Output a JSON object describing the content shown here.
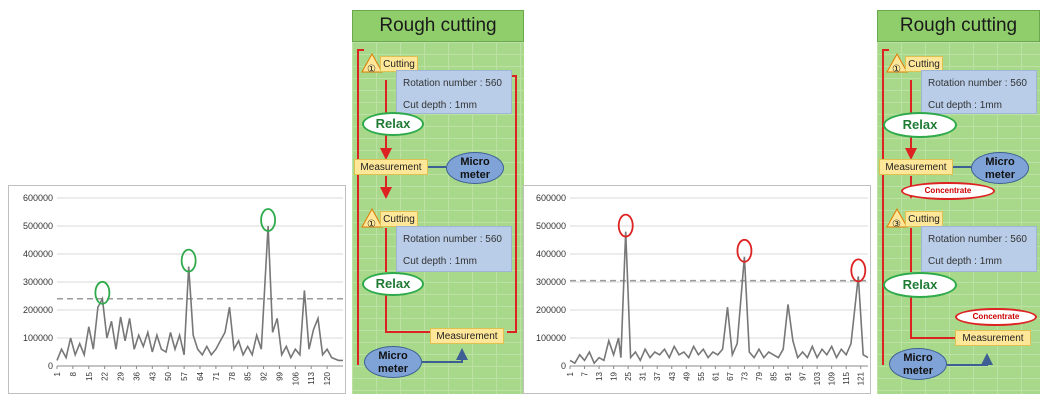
{
  "chart_data": [
    {
      "type": "line",
      "title": "",
      "xlabel": "",
      "ylabel": "",
      "ylim": [
        0,
        600000
      ],
      "yticks": [
        0,
        100000,
        200000,
        300000,
        400000,
        500000,
        600000
      ],
      "ytick_labels": [
        "0",
        "100000",
        "200000",
        "300000",
        "400000",
        "500000",
        "600000"
      ],
      "xlim": [
        1,
        127
      ],
      "xticks": [
        1,
        8,
        15,
        22,
        29,
        36,
        43,
        50,
        57,
        64,
        71,
        78,
        85,
        92,
        99,
        106,
        113,
        120
      ],
      "xtick_labels": [
        "1",
        "8",
        "15",
        "22",
        "29",
        "36",
        "43",
        "50",
        "57",
        "64",
        "71",
        "78",
        "85",
        "92",
        "99",
        "106",
        "113",
        "120"
      ],
      "threshold": 240000,
      "highlight_x": [
        21,
        59,
        94
      ],
      "highlight_color": "#2eaa4a",
      "grid": true,
      "series": [
        {
          "color": "#777777",
          "points": [
            [
              1,
              20000
            ],
            [
              3,
              60000
            ],
            [
              5,
              30000
            ],
            [
              7,
              100000
            ],
            [
              9,
              40000
            ],
            [
              11,
              80000
            ],
            [
              13,
              40000
            ],
            [
              15,
              140000
            ],
            [
              17,
              60000
            ],
            [
              19,
              210000
            ],
            [
              21,
              240000
            ],
            [
              23,
              100000
            ],
            [
              25,
              160000
            ],
            [
              27,
              60000
            ],
            [
              29,
              175000
            ],
            [
              31,
              90000
            ],
            [
              33,
              170000
            ],
            [
              35,
              60000
            ],
            [
              37,
              110000
            ],
            [
              39,
              70000
            ],
            [
              41,
              120000
            ],
            [
              43,
              50000
            ],
            [
              45,
              110000
            ],
            [
              47,
              60000
            ],
            [
              49,
              50000
            ],
            [
              51,
              120000
            ],
            [
              53,
              60000
            ],
            [
              55,
              110000
            ],
            [
              57,
              40000
            ],
            [
              59,
              355000
            ],
            [
              61,
              110000
            ],
            [
              63,
              60000
            ],
            [
              65,
              40000
            ],
            [
              67,
              70000
            ],
            [
              69,
              40000
            ],
            [
              71,
              60000
            ],
            [
              73,
              90000
            ],
            [
              75,
              120000
            ],
            [
              77,
              210000
            ],
            [
              79,
              60000
            ],
            [
              81,
              90000
            ],
            [
              83,
              40000
            ],
            [
              85,
              70000
            ],
            [
              87,
              40000
            ],
            [
              89,
              110000
            ],
            [
              91,
              60000
            ],
            [
              94,
              500000
            ],
            [
              96,
              120000
            ],
            [
              98,
              170000
            ],
            [
              100,
              40000
            ],
            [
              102,
              70000
            ],
            [
              104,
              30000
            ],
            [
              106,
              60000
            ],
            [
              108,
              40000
            ],
            [
              110,
              270000
            ],
            [
              112,
              60000
            ],
            [
              114,
              130000
            ],
            [
              116,
              170000
            ],
            [
              118,
              40000
            ],
            [
              120,
              60000
            ],
            [
              122,
              30000
            ],
            [
              125,
              20000
            ],
            [
              127,
              20000
            ]
          ]
        }
      ]
    },
    {
      "type": "line",
      "title": "",
      "xlabel": "",
      "ylabel": "",
      "ylim": [
        0,
        600000
      ],
      "yticks": [
        0,
        100000,
        200000,
        300000,
        400000,
        500000,
        600000
      ],
      "ytick_labels": [
        "0",
        "100000",
        "200000",
        "300000",
        "400000",
        "500000",
        "600000"
      ],
      "xlim": [
        1,
        124
      ],
      "xticks": [
        1,
        7,
        13,
        19,
        25,
        31,
        37,
        43,
        49,
        55,
        61,
        67,
        73,
        79,
        85,
        91,
        97,
        103,
        109,
        115,
        121
      ],
      "xtick_labels": [
        "1",
        "7",
        "13",
        "19",
        "25",
        "31",
        "37",
        "43",
        "49",
        "55",
        "61",
        "67",
        "73",
        "79",
        "85",
        "91",
        "97",
        "103",
        "109",
        "115",
        "121"
      ],
      "threshold": 305000,
      "highlight_x": [
        24,
        73,
        120
      ],
      "highlight_color": "#dd2222",
      "grid": true,
      "series": [
        {
          "color": "#777777",
          "points": [
            [
              1,
              20000
            ],
            [
              3,
              10000
            ],
            [
              5,
              40000
            ],
            [
              7,
              20000
            ],
            [
              9,
              50000
            ],
            [
              11,
              10000
            ],
            [
              13,
              30000
            ],
            [
              15,
              20000
            ],
            [
              17,
              90000
            ],
            [
              19,
              40000
            ],
            [
              21,
              100000
            ],
            [
              22,
              30000
            ],
            [
              24,
              480000
            ],
            [
              26,
              30000
            ],
            [
              28,
              50000
            ],
            [
              30,
              20000
            ],
            [
              32,
              60000
            ],
            [
              34,
              30000
            ],
            [
              36,
              50000
            ],
            [
              38,
              40000
            ],
            [
              40,
              60000
            ],
            [
              42,
              30000
            ],
            [
              44,
              70000
            ],
            [
              46,
              40000
            ],
            [
              48,
              50000
            ],
            [
              50,
              30000
            ],
            [
              52,
              70000
            ],
            [
              54,
              40000
            ],
            [
              56,
              60000
            ],
            [
              58,
              30000
            ],
            [
              60,
              50000
            ],
            [
              62,
              40000
            ],
            [
              64,
              60000
            ],
            [
              66,
              210000
            ],
            [
              68,
              40000
            ],
            [
              70,
              80000
            ],
            [
              73,
              390000
            ],
            [
              75,
              50000
            ],
            [
              77,
              30000
            ],
            [
              79,
              60000
            ],
            [
              81,
              30000
            ],
            [
              83,
              50000
            ],
            [
              85,
              40000
            ],
            [
              87,
              30000
            ],
            [
              89,
              60000
            ],
            [
              91,
              220000
            ],
            [
              93,
              90000
            ],
            [
              95,
              30000
            ],
            [
              97,
              50000
            ],
            [
              99,
              30000
            ],
            [
              101,
              70000
            ],
            [
              103,
              30000
            ],
            [
              105,
              60000
            ],
            [
              107,
              40000
            ],
            [
              109,
              70000
            ],
            [
              111,
              30000
            ],
            [
              113,
              60000
            ],
            [
              115,
              40000
            ],
            [
              117,
              80000
            ],
            [
              120,
              320000
            ],
            [
              122,
              40000
            ],
            [
              124,
              30000
            ]
          ]
        }
      ]
    }
  ],
  "flowchart_left": {
    "title": "Rough cutting",
    "step1_num": "①",
    "step1_label": "Cutting",
    "step1_param1": "Rotation number : 560",
    "step1_param2": "Cut depth : 1mm",
    "relax1": "Relax",
    "measurement1": "Measurement",
    "micro1": "Micro meter",
    "step2_num": "①",
    "step2_label": "Cutting",
    "step2_param1": "Rotation number : 560",
    "step2_param2": "Cut depth : 1mm",
    "relax2": "Relax",
    "measurement2": "Measurement",
    "micro2": "Micro meter"
  },
  "flowchart_right": {
    "title": "Rough cutting",
    "step1_num": "①",
    "step1_label": "Cutting",
    "step1_param1": "Rotation number : 560",
    "step1_param2": "Cut depth : 1mm",
    "relax1": "Relax",
    "measurement1": "Measurement",
    "micro1": "Micro meter",
    "concentrate1": "Concentrate",
    "step2_num": "③",
    "step2_label": "Cutting",
    "step2_param1": "Rotation number : 560",
    "step2_param2": "Cut depth : 1mm",
    "relax2": "Relax",
    "concentrate2": "Concentrate",
    "measurement2": "Measurement",
    "micro2": "Micro meter"
  },
  "colors": {
    "flow_green": "#a8d88a",
    "arrow_red": "#dd2222",
    "arrow_blue": "#3d5f94"
  }
}
